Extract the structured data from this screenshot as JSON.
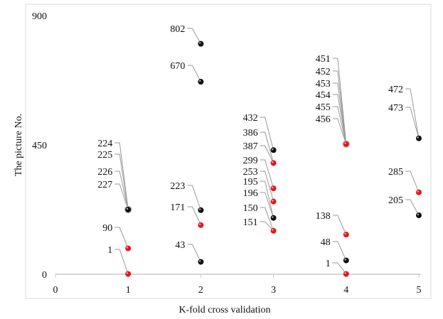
{
  "chart_data": {
    "type": "scatter",
    "title": "",
    "xlabel": "K-fold cross validation",
    "ylabel": "The picture No.",
    "xlim": [
      0,
      5
    ],
    "ylim": [
      0,
      900
    ],
    "xticks": [
      "0",
      "1",
      "2",
      "3",
      "4",
      "5"
    ],
    "yticks": [
      "0",
      "450",
      "900"
    ],
    "grid": false,
    "colors": {
      "red": "#e8141a",
      "black": "#111111",
      "leader": "#999999",
      "axis": "#c8c8c8"
    },
    "points": [
      {
        "x": 1,
        "y": 1,
        "color": "red",
        "labels": [
          "1"
        ]
      },
      {
        "x": 1,
        "y": 90,
        "color": "red",
        "labels": [
          "90"
        ]
      },
      {
        "x": 1,
        "y": 225,
        "color": "black",
        "ring": true,
        "labels": [
          "224",
          "225",
          "226",
          "227"
        ]
      },
      {
        "x": 2,
        "y": 43,
        "color": "black",
        "labels": [
          "43"
        ]
      },
      {
        "x": 2,
        "y": 171,
        "color": "red",
        "labels": [
          "171"
        ]
      },
      {
        "x": 2,
        "y": 223,
        "color": "black",
        "labels": [
          "223"
        ]
      },
      {
        "x": 2,
        "y": 670,
        "color": "black",
        "labels": [
          "670"
        ]
      },
      {
        "x": 2,
        "y": 802,
        "color": "black",
        "labels": [
          "802"
        ]
      },
      {
        "x": 3,
        "y": 151,
        "color": "red",
        "labels": [
          "150",
          "151"
        ]
      },
      {
        "x": 3,
        "y": 196,
        "color": "black",
        "labels": [
          "195",
          "196"
        ]
      },
      {
        "x": 3,
        "y": 253,
        "color": "red",
        "labels": [
          "253"
        ]
      },
      {
        "x": 3,
        "y": 299,
        "color": "red",
        "labels": [
          "299"
        ]
      },
      {
        "x": 3,
        "y": 387,
        "color": "red",
        "labels": [
          "386",
          "387"
        ]
      },
      {
        "x": 3,
        "y": 432,
        "color": "black",
        "labels": [
          "432"
        ]
      },
      {
        "x": 4,
        "y": 1,
        "color": "red",
        "labels": [
          "1"
        ]
      },
      {
        "x": 4,
        "y": 48,
        "color": "black",
        "labels": [
          "48"
        ]
      },
      {
        "x": 4,
        "y": 138,
        "color": "red",
        "labels": [
          "138"
        ]
      },
      {
        "x": 4,
        "y": 453,
        "color": "red",
        "ring": true,
        "labels": [
          "451",
          "452",
          "453",
          "454",
          "455",
          "456"
        ]
      },
      {
        "x": 5,
        "y": 205,
        "color": "black",
        "labels": [
          "205"
        ]
      },
      {
        "x": 5,
        "y": 285,
        "color": "red",
        "labels": [
          "285"
        ]
      },
      {
        "x": 5,
        "y": 473,
        "color": "black",
        "labels": [
          "472",
          "473"
        ]
      }
    ]
  }
}
